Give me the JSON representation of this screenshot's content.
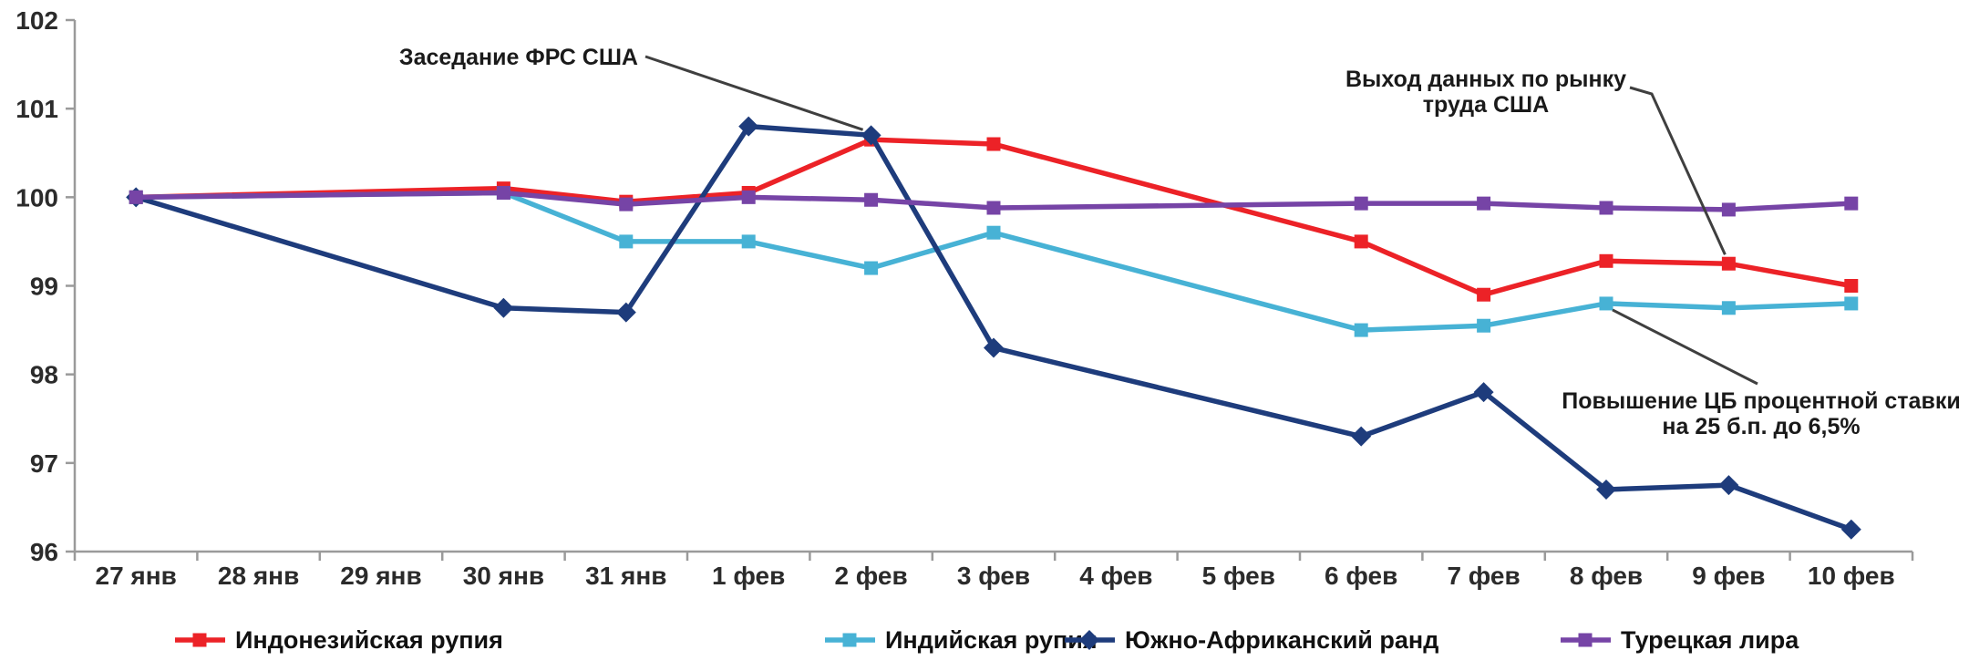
{
  "chart_data": {
    "type": "line",
    "title": "",
    "x_labels": [
      "27 янв",
      "28 янв",
      "29 янв",
      "30 янв",
      "31 янв",
      "1 фев",
      "2 фев",
      "3 фев",
      "4 фев",
      "5 фев",
      "6 фев",
      "7 фев",
      "8 фев",
      "9 фев",
      "10 фев"
    ],
    "y_axis": {
      "min": 96,
      "max": 102,
      "step": 1,
      "labels": [
        "96",
        "97",
        "98",
        "99",
        "100",
        "101",
        "102"
      ]
    },
    "grid": false,
    "legend_position": "bottom",
    "annotation_color": "#3f3f3f",
    "axis_color": "#9a9a9a",
    "series": [
      {
        "key": "indonesian-rupiah",
        "name": "Индонезийская рупия",
        "color": "#EC2227",
        "marker": "square",
        "values": [
          100,
          null,
          null,
          100.1,
          99.95,
          100.05,
          100.65,
          100.6,
          null,
          null,
          99.5,
          98.9,
          99.28,
          99.25,
          99.0
        ]
      },
      {
        "key": "indian-rupee",
        "name": "Индийская рупия",
        "color": "#47B2D5",
        "marker": "square",
        "values": [
          100,
          null,
          null,
          100.05,
          99.5,
          99.5,
          99.2,
          99.6,
          null,
          null,
          98.5,
          98.55,
          98.8,
          98.75,
          98.8
        ]
      },
      {
        "key": "south-african-rand",
        "name": "Южно-Африканский ранд",
        "color": "#1E3C7C",
        "marker": "diamond",
        "values": [
          100,
          null,
          null,
          98.75,
          98.7,
          100.8,
          100.7,
          98.3,
          null,
          null,
          97.3,
          97.8,
          96.7,
          96.75,
          96.25
        ]
      },
      {
        "key": "turkish-lira",
        "name": "Турецкая лира",
        "color": "#7644A6",
        "marker": "square",
        "values": [
          100,
          null,
          null,
          100.05,
          99.92,
          100.0,
          99.97,
          99.88,
          null,
          null,
          99.93,
          99.93,
          99.88,
          99.86,
          99.93
        ]
      }
    ],
    "annotations": [
      {
        "lines": [
          "Заседание ФРС США"
        ],
        "target_series": "south-african-rand",
        "target_category": "2 фев"
      },
      {
        "lines": [
          "Выход данных по рынку",
          "труда США"
        ],
        "target_series": "indonesian-rupiah",
        "target_category": "9 фев"
      },
      {
        "lines": [
          "Повышение ЦБ процентной ставки",
          "на 25 б.п. до 6,5%"
        ],
        "target_series": "indian-rupee",
        "target_category": "8 фев"
      }
    ]
  }
}
